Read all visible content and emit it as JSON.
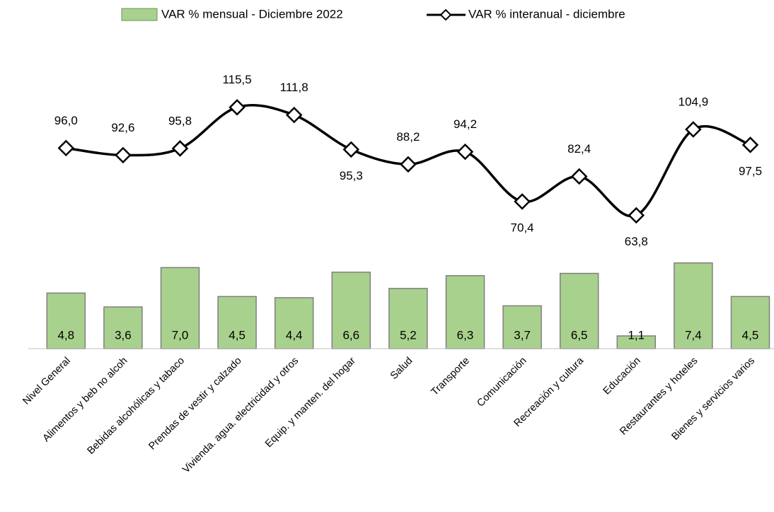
{
  "chart_data": {
    "type": "bar-line",
    "categories": [
      "Nivel General",
      "Alimentos y beb no alcoh",
      "Bebidas alcohólicas y tabaco",
      "Prendas de vestir y calzado",
      "Vivienda. agua. electricidad y otros",
      "Equip. y manten. del hogar",
      "Salud",
      "Transporte",
      "Comunicación",
      "Recreación y cultura",
      "Educación",
      "Restaurantes y hoteles",
      "Bienes y servicios varios"
    ],
    "series": [
      {
        "name": "VAR % mensual - Diciembre 2022",
        "type": "bar",
        "color": "#a9d18e",
        "values": [
          4.8,
          3.6,
          7.0,
          4.5,
          4.4,
          6.6,
          5.2,
          6.3,
          3.7,
          6.5,
          1.1,
          7.4,
          4.5
        ],
        "value_labels": [
          "4,8",
          "3,6",
          "7,0",
          "4,5",
          "4,4",
          "6,6",
          "5,2",
          "6,3",
          "3,7",
          "6,5",
          "1,1",
          "7,4",
          "4,5"
        ]
      },
      {
        "name": "VAR % interanual - diciembre",
        "type": "line",
        "axis": "y2",
        "color": "#000000",
        "values": [
          96.0,
          92.6,
          95.8,
          115.5,
          111.8,
          95.3,
          88.2,
          94.2,
          70.4,
          82.4,
          63.8,
          104.9,
          97.5
        ],
        "value_labels": [
          "96,0",
          "92,6",
          "95,8",
          "115,5",
          "111,8",
          "95,3",
          "88,2",
          "94,2",
          "70,4",
          "82,4",
          "63,8",
          "104,9",
          "97,5"
        ]
      }
    ],
    "ylim": [
      0,
      24
    ],
    "y2lim": [
      0,
      133
    ]
  }
}
